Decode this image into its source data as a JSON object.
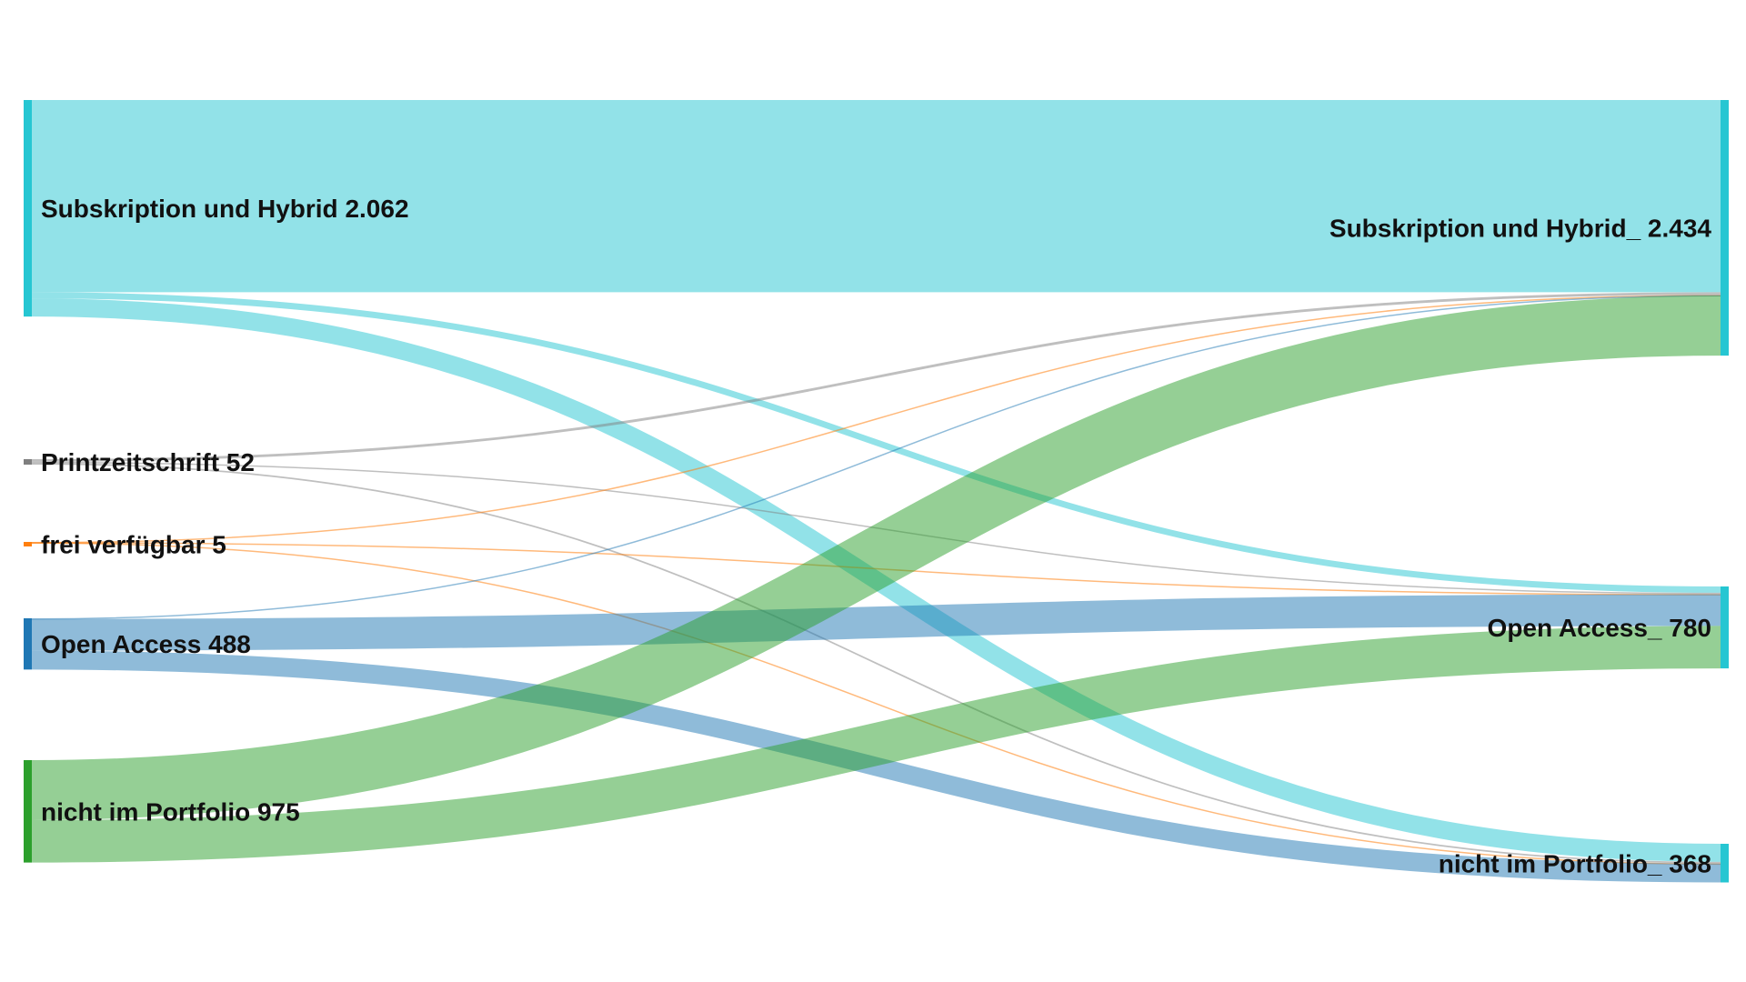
{
  "chart_data": {
    "type": "sankey",
    "title": "",
    "source_nodes": [
      {
        "id": "s_sub",
        "label": "Subskription und Hybrid 2.062",
        "value": 2062,
        "color": "#26c6d2"
      },
      {
        "id": "s_print",
        "label": "Printzeitschrift 52",
        "value": 52,
        "color": "#7f7f7f"
      },
      {
        "id": "s_frei",
        "label": "frei verfügbar 5",
        "value": 5,
        "color": "#ff7f0e"
      },
      {
        "id": "s_oa",
        "label": "Open Access 488",
        "value": 488,
        "color": "#1f77b4"
      },
      {
        "id": "s_nip",
        "label": "nicht im Portfolio 975",
        "value": 975,
        "color": "#2ca02c"
      }
    ],
    "target_nodes": [
      {
        "id": "t_sub",
        "label": "Subskription und Hybrid_ 2.434",
        "value": 2434,
        "color": "#26c6d2"
      },
      {
        "id": "t_oa",
        "label": "Open Access_ 780",
        "value": 780,
        "color": "#26c6d2"
      },
      {
        "id": "t_nip",
        "label": "nicht im Portfolio_ 368",
        "value": 368,
        "color": "#26c6d2"
      }
    ],
    "links": [
      {
        "source": "s_sub",
        "target": "t_sub",
        "value": 1830
      },
      {
        "source": "s_sub",
        "target": "t_oa",
        "value": 60
      },
      {
        "source": "s_sub",
        "target": "t_nip",
        "value": 172
      },
      {
        "source": "s_print",
        "target": "t_sub",
        "value": 25
      },
      {
        "source": "s_print",
        "target": "t_oa",
        "value": 12
      },
      {
        "source": "s_print",
        "target": "t_nip",
        "value": 15
      },
      {
        "source": "s_frei",
        "target": "t_sub",
        "value": 2
      },
      {
        "source": "s_frei",
        "target": "t_oa",
        "value": 2
      },
      {
        "source": "s_frei",
        "target": "t_nip",
        "value": 1
      },
      {
        "source": "s_oa",
        "target": "t_sub",
        "value": 6
      },
      {
        "source": "s_oa",
        "target": "t_oa",
        "value": 302
      },
      {
        "source": "s_oa",
        "target": "t_nip",
        "value": 180
      },
      {
        "source": "s_nip",
        "target": "t_sub",
        "value": 571
      },
      {
        "source": "s_nip",
        "target": "t_oa",
        "value": 404
      }
    ]
  }
}
